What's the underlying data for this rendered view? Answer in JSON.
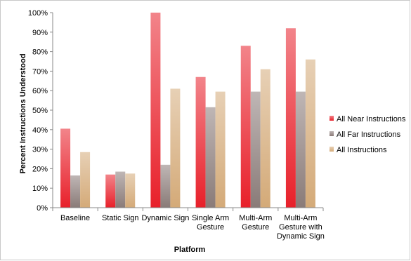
{
  "chart_data": {
    "type": "bar",
    "categories": [
      [
        "Baseline"
      ],
      [
        "Static Sign"
      ],
      [
        "Dynamic Sign"
      ],
      [
        "Single Arm",
        "Gesture"
      ],
      [
        "Multi-Arm",
        "Gesture"
      ],
      [
        "Multi-Arm",
        "Gesture with",
        "Dynamic Sign"
      ]
    ],
    "series": [
      {
        "name": "All Near Instructions",
        "color": "#e8202a",
        "values": [
          40.5,
          17,
          100,
          67,
          83,
          92
        ]
      },
      {
        "name": "All Far Instructions",
        "color": "#8a7b78",
        "values": [
          16.5,
          18.5,
          22,
          51.5,
          59.5,
          59.5
        ]
      },
      {
        "name": "All Instructions",
        "color": "#d4aa78",
        "values": [
          28.5,
          17.5,
          61,
          59.5,
          71,
          76
        ]
      }
    ],
    "xlabel": "Platform",
    "ylabel": "Percent Instructions Understood",
    "ylim": [
      0,
      100
    ],
    "yticks": [
      "0%",
      "10%",
      "20%",
      "30%",
      "40%",
      "50%",
      "60%",
      "70%",
      "80%",
      "90%",
      "100%"
    ],
    "grid": false,
    "legend_position": "right"
  }
}
